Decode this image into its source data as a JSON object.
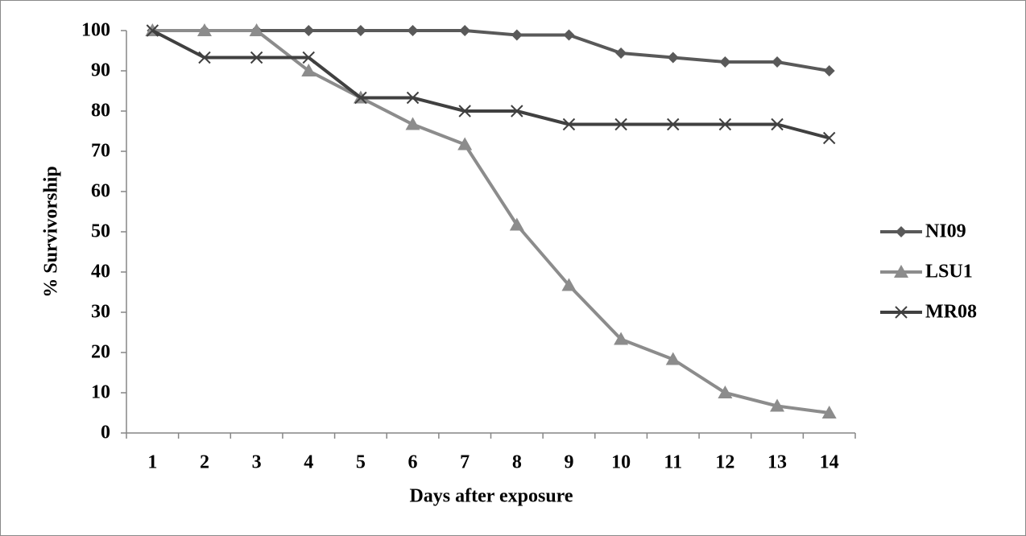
{
  "chart_data": {
    "type": "line",
    "x_label": "Days after exposure",
    "y_label": "% Survivorship",
    "categories": [
      "1",
      "2",
      "3",
      "4",
      "5",
      "6",
      "7",
      "8",
      "9",
      "10",
      "11",
      "12",
      "13",
      "14"
    ],
    "series": [
      {
        "name": "NI09",
        "color": "#595959",
        "marker": "diamond",
        "values": [
          100,
          100,
          100,
          100,
          100,
          100,
          100,
          98.9,
          98.9,
          94.4,
          93.3,
          92.2,
          92.2,
          90
        ]
      },
      {
        "name": "LSU1",
        "color": "#8c8c8c",
        "marker": "triangle",
        "values": [
          100,
          100,
          100,
          90,
          83.3,
          76.7,
          71.7,
          51.7,
          36.7,
          23.3,
          18.3,
          10,
          6.7,
          5
        ]
      },
      {
        "name": "MR08",
        "color": "#404040",
        "marker": "x",
        "values": [
          100,
          93.3,
          93.3,
          93.3,
          83.3,
          83.3,
          80,
          80,
          76.7,
          76.7,
          76.7,
          76.7,
          76.7,
          73.3
        ]
      }
    ],
    "ylim": [
      0,
      100
    ],
    "yticks": [
      0,
      10,
      20,
      30,
      40,
      50,
      60,
      70,
      80,
      90,
      100
    ],
    "grid": false,
    "legend": "right"
  }
}
